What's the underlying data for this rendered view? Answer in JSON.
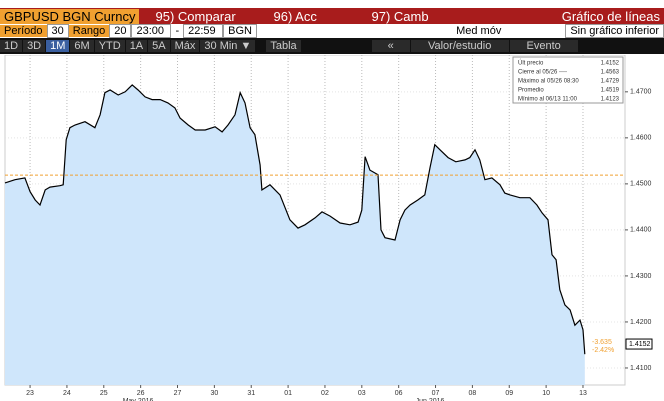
{
  "toolbar": {
    "ticker": "GBPUSD BGN Curncy",
    "compare": "95) Comparar",
    "actions": "96) Acc",
    "change": "97) Camb",
    "chart_kind": "Gráfico de líneas",
    "period_label": "Período",
    "period": "30",
    "range_label": "Rango",
    "range": "20",
    "time_from": "23:00",
    "dash": "-",
    "time_to": "22:59",
    "source": "BGN",
    "moving_avg": "Med móv",
    "lower_chart": "Sin gráfico inferior",
    "ranges": [
      "1D",
      "3D",
      "1M",
      "6M",
      "YTD",
      "1A",
      "5A",
      "Máx",
      "30 Min ▼"
    ],
    "table": "Tabla",
    "back": "«",
    "study": "Valor/estudio",
    "event": "Evento"
  },
  "chart_data": {
    "type": "line",
    "series": [
      {
        "name": "Últ precio",
        "color": "#000000",
        "fill": "#cfe6fb",
        "x": [
          -0.68,
          -0.41,
          -0.14,
          0,
          0.14,
          0.27,
          0.41,
          0.54,
          0.81,
          0.9,
          0.98,
          1.08,
          1.22,
          1.49,
          1.76,
          1.9,
          2.03,
          2.17,
          2.39,
          2.58,
          2.77,
          2.93,
          3.12,
          3.31,
          3.53,
          3.74,
          3.93,
          4.07,
          4.29,
          4.48,
          4.75,
          5.02,
          5.21,
          5.37,
          5.56,
          5.7,
          5.83,
          5.97,
          6.1,
          6.24,
          6.29,
          6.51,
          6.78,
          7.05,
          7.27,
          7.46,
          7.73,
          7.92,
          8.14,
          8.41,
          8.68,
          8.9,
          9.0,
          9.09,
          9.22,
          9.44,
          9.52,
          9.63,
          9.9,
          10.04,
          10.17,
          10.31,
          10.52,
          10.71,
          10.85,
          10.98,
          11.12,
          11.34,
          11.55,
          11.8,
          11.93,
          12.07,
          12.2,
          12.34,
          12.53,
          12.75,
          12.88,
          13.02,
          13.29,
          13.56,
          13.75,
          13.89,
          14.05,
          14.16,
          14.27,
          14.37,
          14.51,
          14.65,
          14.78,
          14.92,
          15.0,
          15.05
        ],
        "values": [
          1.4502,
          1.4509,
          1.4513,
          1.4483,
          1.4465,
          1.4454,
          1.4487,
          1.4493,
          1.4496,
          1.4498,
          1.4596,
          1.4622,
          1.4628,
          1.4635,
          1.4622,
          1.465,
          1.4698,
          1.4704,
          1.4693,
          1.47,
          1.4715,
          1.4704,
          1.4689,
          1.4683,
          1.4683,
          1.4676,
          1.4665,
          1.4643,
          1.4628,
          1.4617,
          1.4617,
          1.4624,
          1.4613,
          1.4628,
          1.465,
          1.4698,
          1.4676,
          1.4622,
          1.4607,
          1.4541,
          1.4487,
          1.4498,
          1.4476,
          1.4422,
          1.4404,
          1.4411,
          1.4426,
          1.4439,
          1.443,
          1.4415,
          1.4411,
          1.4417,
          1.4443,
          1.4559,
          1.453,
          1.452,
          1.44,
          1.4383,
          1.4378,
          1.4422,
          1.4443,
          1.4454,
          1.4465,
          1.4476,
          1.4535,
          1.4585,
          1.4574,
          1.4557,
          1.4548,
          1.4552,
          1.4557,
          1.4574,
          1.4552,
          1.4509,
          1.4513,
          1.4498,
          1.448,
          1.4476,
          1.447,
          1.447,
          1.4454,
          1.4437,
          1.4422,
          1.4346,
          1.4335,
          1.427,
          1.4237,
          1.4226,
          1.4193,
          1.4204,
          1.4183,
          1.413
        ]
      }
    ],
    "average": 1.4519,
    "average_color": "#f0a030",
    "last_label": 1.4152,
    "legend": [
      [
        "Últ precio",
        "1.4152"
      ],
      [
        "Cierre al 05/26 ----",
        "1.4563"
      ],
      [
        "Máximo al 05/26 08:30",
        "1.4729"
      ],
      [
        "Promedio",
        "1.4519"
      ],
      [
        "Mínimo al 06/13 11:00",
        "1.4123"
      ]
    ],
    "annotations": [
      "-3.635",
      "-2.42%"
    ],
    "xlim": [
      -0.68,
      16.14
    ],
    "ylim": [
      1.4063,
      1.478
    ],
    "xticks": [
      {
        "value": 0,
        "label": "23"
      },
      {
        "value": 1,
        "label": "24"
      },
      {
        "value": 2,
        "label": "25"
      },
      {
        "value": 3,
        "label": "26"
      },
      {
        "value": 4,
        "label": "27"
      },
      {
        "value": 5,
        "label": "30"
      },
      {
        "value": 6,
        "label": "31"
      },
      {
        "value": 7,
        "label": "01"
      },
      {
        "value": 8,
        "label": "02"
      },
      {
        "value": 9,
        "label": "03"
      },
      {
        "value": 10,
        "label": "06"
      },
      {
        "value": 11,
        "label": "07"
      },
      {
        "value": 12,
        "label": "08"
      },
      {
        "value": 13,
        "label": "09"
      },
      {
        "value": 14,
        "label": "10"
      },
      {
        "value": 15,
        "label": "13"
      }
    ],
    "month_ticks": [
      {
        "value": 2.93,
        "label": "May 2016"
      },
      {
        "value": 10.85,
        "label": "Jun 2016"
      }
    ],
    "yticks": [
      {
        "value": 1.41,
        "label": "1.4100"
      },
      {
        "value": 1.42,
        "label": "1.4200"
      },
      {
        "value": 1.43,
        "label": "1.4300"
      },
      {
        "value": 1.44,
        "label": "1.4400"
      },
      {
        "value": 1.45,
        "label": "1.4500"
      },
      {
        "value": 1.46,
        "label": "1.4600"
      },
      {
        "value": 1.47,
        "label": "1.4700"
      }
    ],
    "grid": true
  }
}
